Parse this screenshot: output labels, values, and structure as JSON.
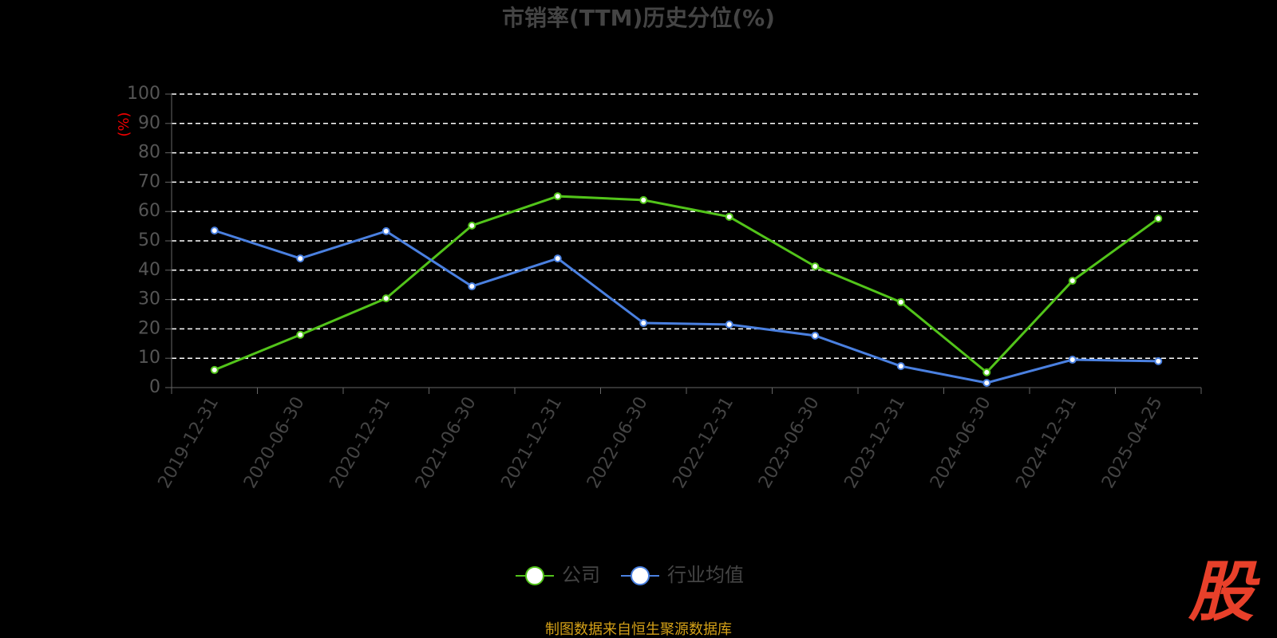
{
  "chart_data": {
    "type": "line",
    "title": "市销率(TTM)历史分位(%)",
    "y_label": "(%)",
    "categories": [
      "2019-12-31",
      "2020-06-30",
      "2020-12-31",
      "2021-06-30",
      "2021-12-31",
      "2022-06-30",
      "2022-12-31",
      "2023-06-30",
      "2023-12-31",
      "2024-06-30",
      "2024-12-31",
      "2025-04-25"
    ],
    "series": [
      {
        "name": "公司",
        "color": "#52c41a",
        "values": [
          6.0,
          18.0,
          30.4,
          55.2,
          65.2,
          63.9,
          58.2,
          41.3,
          29.1,
          5.2,
          36.4,
          57.6
        ]
      },
      {
        "name": "行业均值",
        "color": "#4a80e0",
        "values": [
          53.5,
          44.0,
          53.3,
          34.5,
          44.0,
          22.0,
          21.5,
          17.7,
          7.3,
          1.6,
          9.5,
          9.0
        ]
      }
    ],
    "ylim": [
      0,
      100
    ],
    "yticks": [
      0,
      10,
      20,
      30,
      40,
      50,
      60,
      70,
      80,
      90,
      100
    ],
    "grid": true,
    "legend": "bottom",
    "source": "制图数据来自恒生聚源数据库",
    "logo": "股"
  }
}
